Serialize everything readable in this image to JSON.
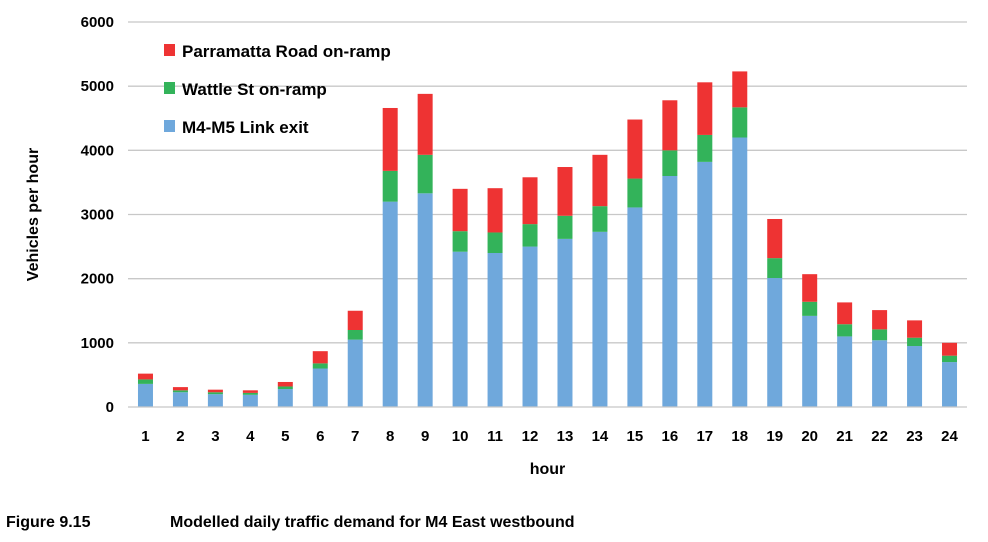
{
  "chart_data": {
    "type": "bar",
    "stacked": true,
    "xlabel": "hour",
    "ylabel": "Vehicles per hour",
    "ylim": [
      0,
      6000
    ],
    "yticks": [
      0,
      1000,
      2000,
      3000,
      4000,
      5000,
      6000
    ],
    "grid": true,
    "legend_position": "top-left",
    "categories": [
      "1",
      "2",
      "3",
      "4",
      "5",
      "6",
      "7",
      "8",
      "9",
      "10",
      "11",
      "12",
      "13",
      "14",
      "15",
      "16",
      "17",
      "18",
      "19",
      "20",
      "21",
      "22",
      "23",
      "24"
    ],
    "series": [
      {
        "name": "M4-M5 Link exit",
        "color": "#6fa8dc",
        "values": [
          360,
          230,
          200,
          190,
          280,
          600,
          1050,
          3200,
          3330,
          2420,
          2400,
          2500,
          2620,
          2730,
          3110,
          3600,
          3820,
          4200,
          2010,
          1420,
          1100,
          1040,
          950,
          700
        ]
      },
      {
        "name": "Wattle St on-ramp",
        "color": "#33b35a",
        "values": [
          70,
          30,
          30,
          30,
          40,
          80,
          150,
          480,
          600,
          320,
          320,
          350,
          360,
          400,
          450,
          400,
          420,
          470,
          310,
          220,
          190,
          170,
          130,
          100
        ]
      },
      {
        "name": "Parramatta Road on-ramp",
        "color": "#ee3333",
        "values": [
          90,
          50,
          40,
          40,
          70,
          190,
          300,
          980,
          950,
          660,
          690,
          730,
          760,
          800,
          920,
          780,
          820,
          560,
          610,
          430,
          340,
          300,
          270,
          200
        ]
      }
    ]
  },
  "caption": {
    "figure_number": "Figure 9.15",
    "title": "Modelled daily traffic demand for M4 East westbound"
  }
}
